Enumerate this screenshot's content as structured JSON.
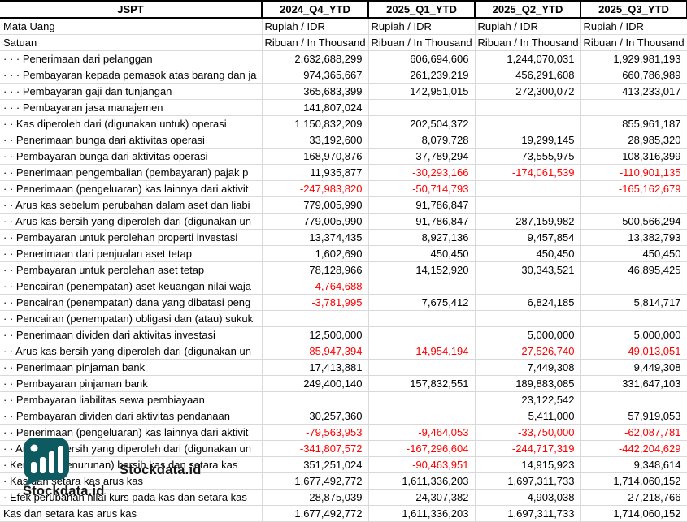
{
  "table": {
    "corner_label": "JSPT",
    "columns": [
      "2024_Q4_YTD",
      "2025_Q1_YTD",
      "2025_Q2_YTD",
      "2025_Q3_YTD"
    ],
    "meta_rows": [
      {
        "label": "Mata Uang",
        "values": [
          "Rupiah / IDR",
          "Rupiah / IDR",
          "Rupiah / IDR",
          "Rupiah / IDR"
        ]
      },
      {
        "label": "Satuan",
        "values": [
          "Ribuan / In Thousand",
          "Ribuan / In Thousand",
          "Ribuan / In Thousand",
          "Ribuan / In Thousand"
        ]
      }
    ],
    "rows": [
      {
        "label": "· · · Penerimaan dari pelanggan",
        "values": [
          "2,632,688,299",
          "606,694,606",
          "1,244,070,031",
          "1,929,981,193"
        ]
      },
      {
        "label": "· · · Pembayaran kepada pemasok atas barang dan ja",
        "values": [
          "974,365,667",
          "261,239,219",
          "456,291,608",
          "660,786,989"
        ]
      },
      {
        "label": "· · · Pembayaran gaji dan tunjangan",
        "values": [
          "365,683,399",
          "142,951,015",
          "272,300,072",
          "413,233,017"
        ]
      },
      {
        "label": "· · · Pembayaran jasa manajemen",
        "values": [
          "141,807,024",
          "",
          "",
          ""
        ]
      },
      {
        "label": "· · Kas diperoleh dari (digunakan untuk) operasi",
        "values": [
          "1,150,832,209",
          "202,504,372",
          "",
          "855,961,187"
        ]
      },
      {
        "label": "· · Penerimaan bunga dari aktivitas operasi",
        "values": [
          "33,192,600",
          "8,079,728",
          "19,299,145",
          "28,985,320"
        ]
      },
      {
        "label": "· · Pembayaran bunga dari aktivitas operasi",
        "values": [
          "168,970,876",
          "37,789,294",
          "73,555,975",
          "108,316,399"
        ]
      },
      {
        "label": "· · Penerimaan pengembalian (pembayaran) pajak p",
        "values": [
          "11,935,877",
          "-30,293,166",
          "-174,061,539",
          "-110,901,135"
        ]
      },
      {
        "label": "· · Penerimaan (pengeluaran) kas lainnya dari aktivit",
        "values": [
          "-247,983,820",
          "-50,714,793",
          "",
          "-165,162,679"
        ]
      },
      {
        "label": "· · Arus kas sebelum perubahan dalam aset dan liabi",
        "values": [
          "779,005,990",
          "91,786,847",
          "",
          ""
        ]
      },
      {
        "label": "· · Arus kas bersih yang diperoleh dari (digunakan un",
        "values": [
          "779,005,990",
          "91,786,847",
          "287,159,982",
          "500,566,294"
        ]
      },
      {
        "label": "· · Pembayaran untuk perolehan properti investasi",
        "values": [
          "13,374,435",
          "8,927,136",
          "9,457,854",
          "13,382,793"
        ]
      },
      {
        "label": "· · Penerimaan dari penjualan aset tetap",
        "values": [
          "1,602,690",
          "450,450",
          "450,450",
          "450,450"
        ]
      },
      {
        "label": "· · Pembayaran untuk perolehan aset tetap",
        "values": [
          "78,128,966",
          "14,152,920",
          "30,343,521",
          "46,895,425"
        ]
      },
      {
        "label": "· · Pencairan (penempatan) aset keuangan nilai waja",
        "values": [
          "-4,764,688",
          "",
          "",
          ""
        ]
      },
      {
        "label": "· · Pencairan (penempatan) dana yang dibatasi peng",
        "values": [
          "-3,781,995",
          "7,675,412",
          "6,824,185",
          "5,814,717"
        ]
      },
      {
        "label": "· · Pencairan (penempatan) obligasi dan (atau) sukuk",
        "values": [
          "",
          "",
          "",
          ""
        ]
      },
      {
        "label": "· · Penerimaan dividen dari aktivitas investasi",
        "values": [
          "12,500,000",
          "",
          "5,000,000",
          "5,000,000"
        ]
      },
      {
        "label": "· · Arus kas bersih yang diperoleh dari (digunakan un",
        "values": [
          "-85,947,394",
          "-14,954,194",
          "-27,526,740",
          "-49,013,051"
        ]
      },
      {
        "label": "· · Penerimaan pinjaman bank",
        "values": [
          "17,413,881",
          "",
          "7,449,308",
          "9,449,308"
        ]
      },
      {
        "label": "· · Pembayaran pinjaman bank",
        "values": [
          "249,400,140",
          "157,832,551",
          "189,883,085",
          "331,647,103"
        ]
      },
      {
        "label": "· · Pembayaran liabilitas sewa pembiayaan",
        "values": [
          "",
          "",
          "23,122,542",
          ""
        ]
      },
      {
        "label": "· · Pembayaran dividen dari aktivitas pendanaan",
        "values": [
          "30,257,360",
          "",
          "5,411,000",
          "57,919,053"
        ]
      },
      {
        "label": "· · Penerimaan (pengeluaran) kas lainnya dari aktivit",
        "values": [
          "-79,563,953",
          "-9,464,053",
          "-33,750,000",
          "-62,087,781"
        ]
      },
      {
        "label": "· · Arus kas bersih yang diperoleh dari (digunakan un",
        "values": [
          "-341,807,572",
          "-167,296,604",
          "-244,717,319",
          "-442,204,629"
        ]
      },
      {
        "label": "· Kenaikan (penurunan) bersih kas dan setara kas",
        "values": [
          "351,251,024",
          "-90,463,951",
          "14,915,923",
          "9,348,614"
        ]
      },
      {
        "label": "· Kas dan setara kas arus kas",
        "values": [
          "1,677,492,772",
          "1,611,336,203",
          "1,697,311,733",
          "1,714,060,152"
        ]
      },
      {
        "label": "· Efek perubahan nilai kurs pada kas dan setara kas",
        "values": [
          "28,875,039",
          "24,307,382",
          "4,903,038",
          "27,218,766"
        ]
      },
      {
        "label": "Kas dan setara kas arus kas",
        "values": [
          "1,677,492,772",
          "1,611,336,203",
          "1,697,311,733",
          "1,714,060,152"
        ]
      }
    ],
    "negative_color": "#ff0000"
  },
  "watermark": {
    "brand": "Stockdata.id",
    "icon": "bar-chart-logo",
    "color": "#0d5a60"
  }
}
